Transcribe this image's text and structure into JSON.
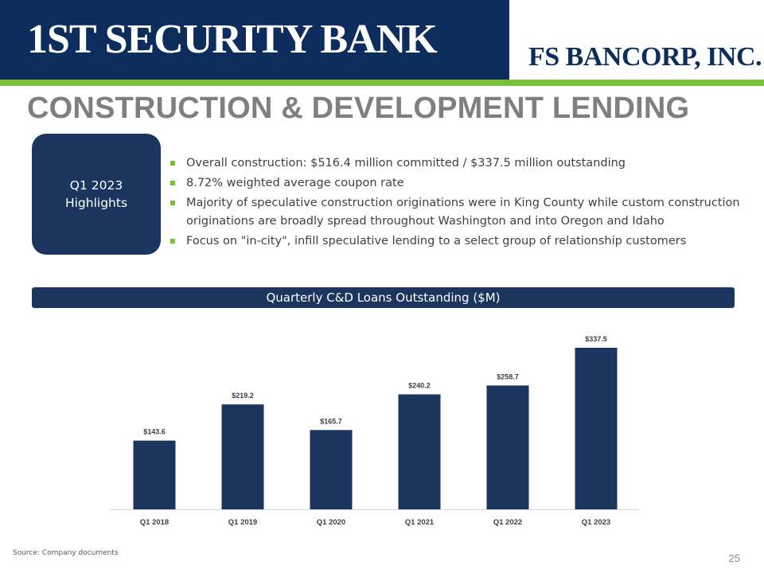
{
  "header": {
    "logo_left": "1ST SECURITY BANK",
    "logo_right": "FS BANCORP, INC."
  },
  "title": "CONSTRUCTION &  DEVELOPMENT LENDING",
  "highlights": {
    "line1": "Q1 2023",
    "line2": "Highlights"
  },
  "bullets": [
    "Overall construction: $516.4 million committed / $337.5 million outstanding",
    "8.72% weighted average coupon rate",
    "Majority of speculative construction originations were in King County while custom construction originations are broadly spread throughout Washington and into Oregon and Idaho",
    "Focus on \"in-city\", infill speculative lending to a select group of  relationship customers"
  ],
  "colors": {
    "navy": "#1c355e",
    "header_navy": "#0d2d5c",
    "green": "#7cbf3a",
    "title_gray": "#7f7f7f"
  },
  "chart_data": {
    "type": "bar",
    "title": "Quarterly C&D Loans Outstanding ($M)",
    "categories": [
      "Q1 2018",
      "Q1 2019",
      "Q1 2020",
      "Q1 2021",
      "Q1 2022",
      "Q1 2023"
    ],
    "values": [
      143.6,
      219.2,
      165.7,
      240.2,
      258.7,
      337.5
    ],
    "data_labels": [
      "$143.6",
      "$219.2",
      "$165.7",
      "$240.2",
      "$258.7",
      "$337.5"
    ],
    "ylim": [
      0,
      337.5
    ],
    "grid": false,
    "legend": "none"
  },
  "footer": {
    "source": "Source: Company documents",
    "page_number": "25"
  }
}
